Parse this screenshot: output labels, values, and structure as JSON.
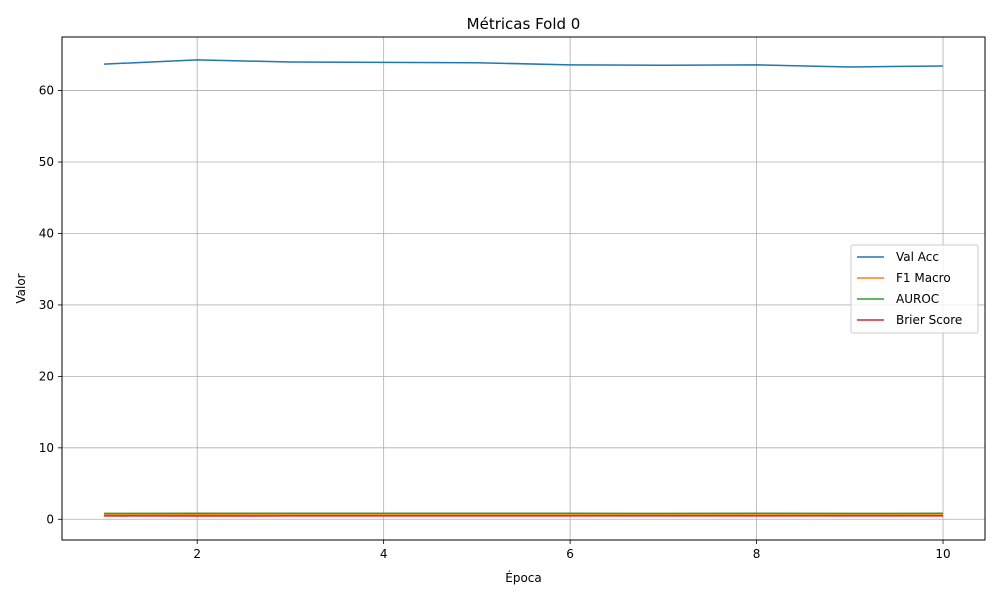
{
  "chart_data": {
    "type": "line",
    "title": "Métricas Fold 0",
    "xlabel": "Época",
    "ylabel": "Valor",
    "x": [
      1,
      2,
      3,
      4,
      5,
      6,
      7,
      8,
      9,
      10
    ],
    "xlim": [
      0.55,
      10.45
    ],
    "ylim": [
      -2.9,
      67.5
    ],
    "xticks": [
      2,
      4,
      6,
      8,
      10
    ],
    "yticks": [
      0,
      10,
      20,
      30,
      40,
      50,
      60
    ],
    "grid": true,
    "legend_position": "center-right",
    "series": [
      {
        "name": "Val Acc",
        "color": "#1f77b4",
        "values": [
          63.7,
          64.3,
          64.0,
          63.95,
          63.9,
          63.6,
          63.55,
          63.6,
          63.3,
          63.45
        ]
      },
      {
        "name": "F1 Macro",
        "color": "#ff7f0e",
        "values": [
          0.62,
          0.63,
          0.62,
          0.62,
          0.62,
          0.62,
          0.61,
          0.62,
          0.61,
          0.62
        ]
      },
      {
        "name": "AUROC",
        "color": "#2ca02c",
        "values": [
          0.83,
          0.84,
          0.84,
          0.84,
          0.84,
          0.84,
          0.83,
          0.84,
          0.83,
          0.84
        ]
      },
      {
        "name": "Brier Score",
        "color": "#d62728",
        "values": [
          0.47,
          0.46,
          0.47,
          0.47,
          0.47,
          0.47,
          0.47,
          0.47,
          0.48,
          0.47
        ]
      }
    ]
  }
}
